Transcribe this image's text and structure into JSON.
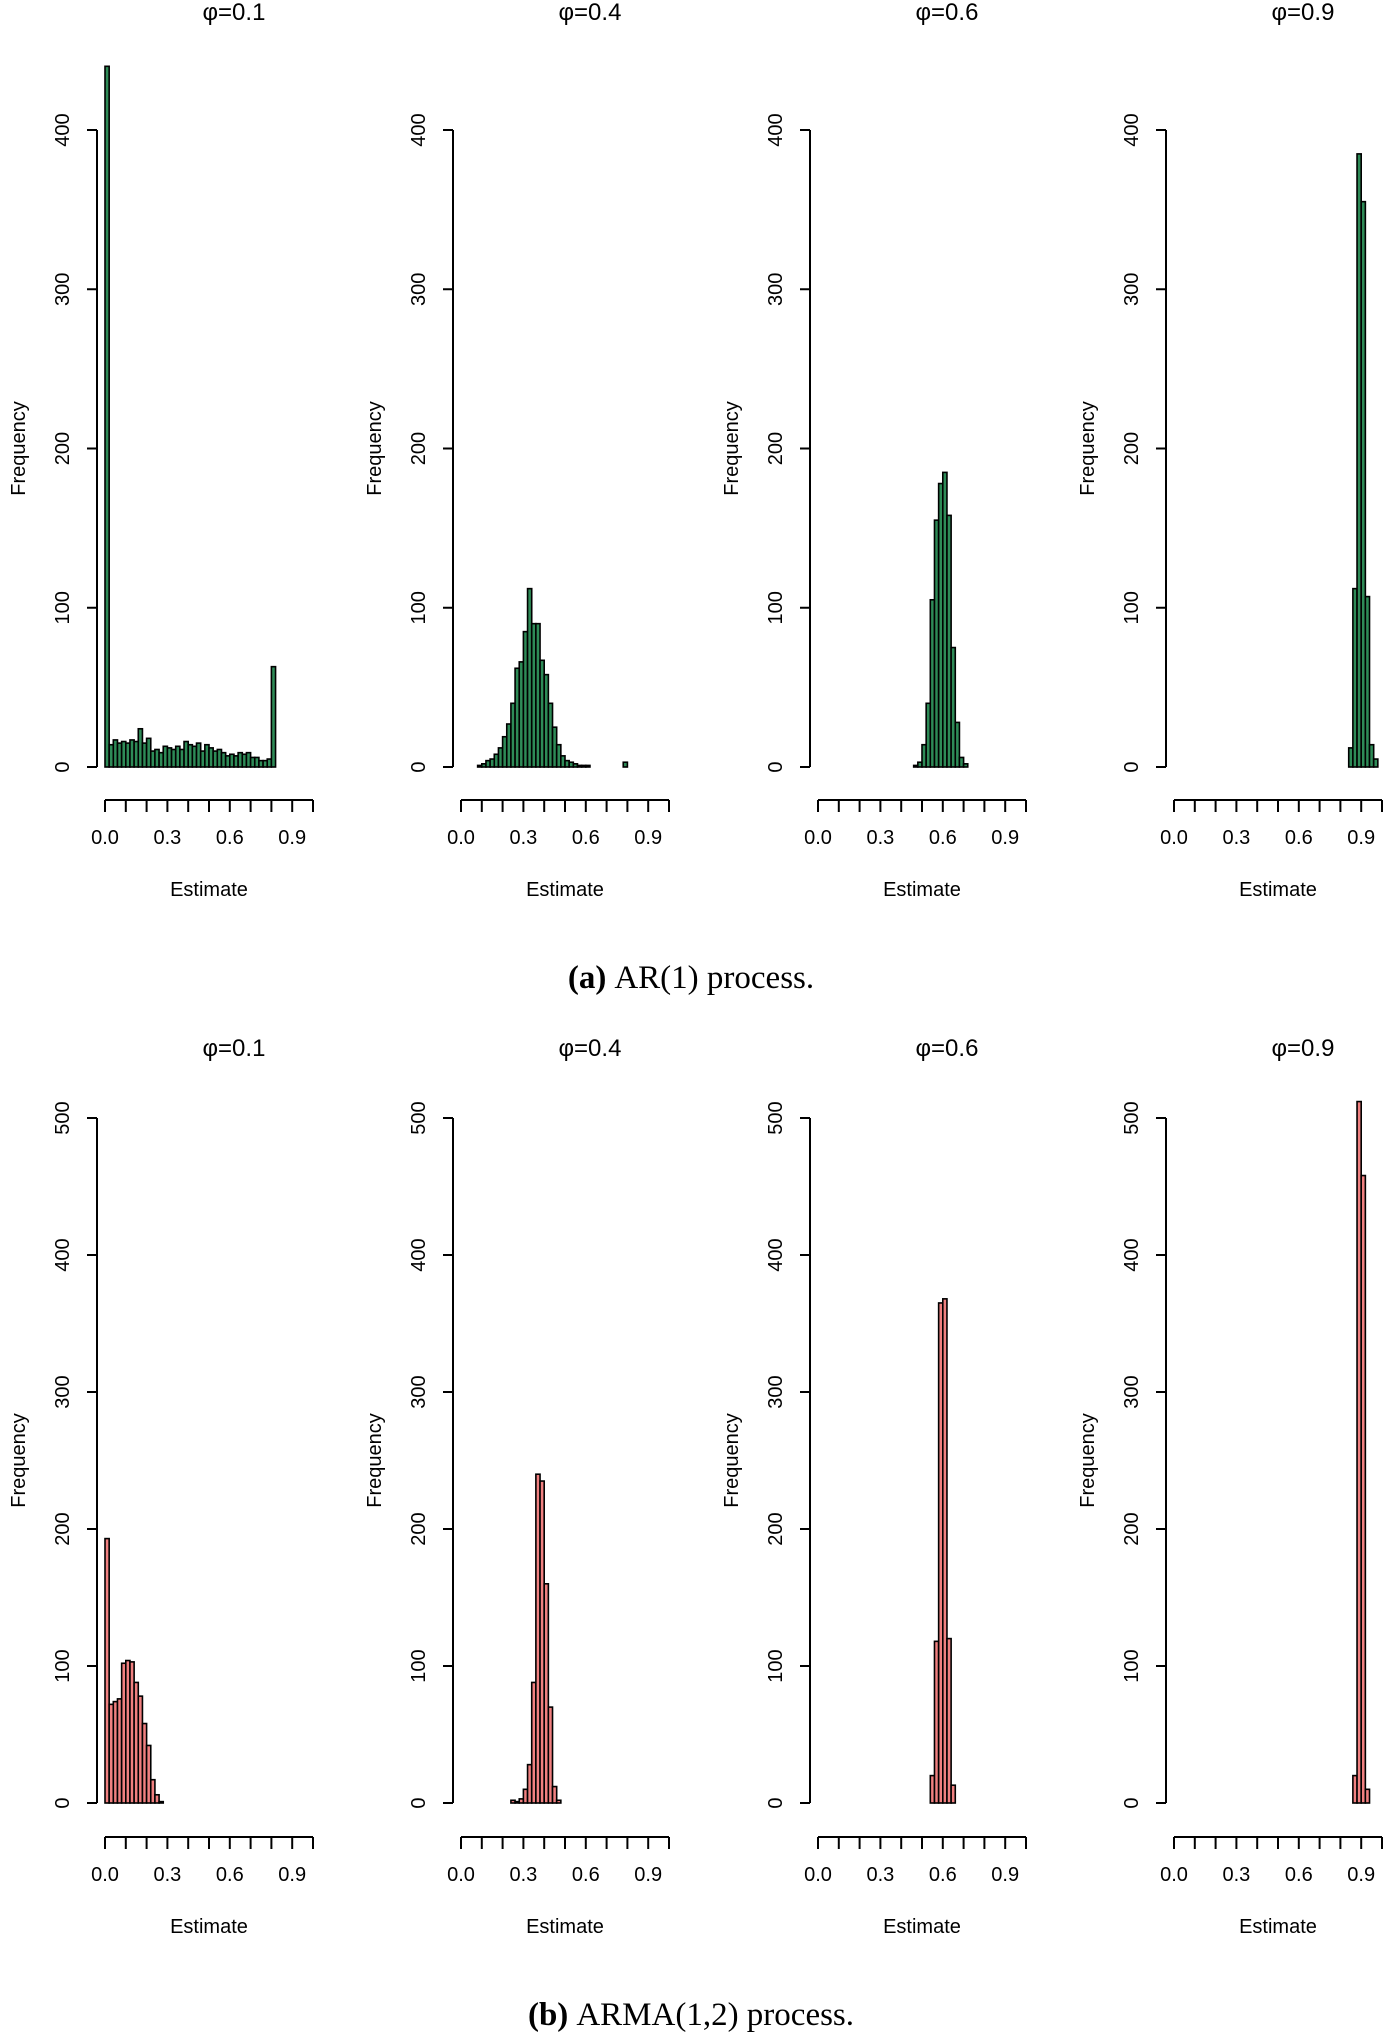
{
  "chart_data": [
    {
      "type": "bar",
      "panel": "a",
      "title": "φ=0.1",
      "xlabel": "Estimate",
      "ylabel": "Frequency",
      "color": "#2e8b57",
      "xlim": [
        0.0,
        1.0
      ],
      "ylim": [
        0,
        440
      ],
      "x_ticks": [
        0.0,
        0.1,
        0.2,
        0.3,
        0.4,
        0.5,
        0.6,
        0.7,
        0.8,
        0.9,
        1.0
      ],
      "x_tick_labels": [
        "0.0",
        "0.3",
        "0.6",
        "0.9"
      ],
      "y_ticks": [
        0,
        100,
        200,
        300,
        400
      ],
      "bin_start": 0.0,
      "bin_width": 0.02,
      "values": [
        440,
        14,
        17,
        15,
        16,
        15,
        17,
        16,
        24,
        15,
        18,
        10,
        11,
        9,
        13,
        12,
        11,
        13,
        11,
        16,
        14,
        13,
        15,
        10,
        14,
        12,
        10,
        11,
        9,
        7,
        8,
        7,
        9,
        8,
        9,
        6,
        6,
        4,
        4,
        5,
        63
      ]
    },
    {
      "type": "bar",
      "panel": "a",
      "title": "φ=0.4",
      "xlabel": "Estimate",
      "ylabel": "Frequency",
      "color": "#2e8b57",
      "xlim": [
        0.0,
        1.0
      ],
      "ylim": [
        0,
        400
      ],
      "x_ticks": [
        0.0,
        0.1,
        0.2,
        0.3,
        0.4,
        0.5,
        0.6,
        0.7,
        0.8,
        0.9,
        1.0
      ],
      "x_tick_labels": [
        "0.0",
        "0.3",
        "0.6",
        "0.9"
      ],
      "y_ticks": [
        0,
        100,
        200,
        300,
        400
      ],
      "bin_start": 0.0,
      "bin_width": 0.02,
      "values": [
        0,
        0,
        0,
        0,
        1,
        2,
        4,
        5,
        8,
        12,
        19,
        27,
        40,
        62,
        66,
        85,
        112,
        90,
        90,
        67,
        58,
        40,
        25,
        14,
        7,
        4,
        3,
        2,
        1,
        1,
        1,
        0,
        0,
        0,
        0,
        0,
        0,
        0,
        0,
        3
      ]
    },
    {
      "type": "bar",
      "panel": "a",
      "title": "φ=0.6",
      "xlabel": "Estimate",
      "ylabel": "Frequency",
      "color": "#2e8b57",
      "xlim": [
        0.0,
        1.0
      ],
      "ylim": [
        0,
        400
      ],
      "x_ticks": [
        0.0,
        0.1,
        0.2,
        0.3,
        0.4,
        0.5,
        0.6,
        0.7,
        0.8,
        0.9,
        1.0
      ],
      "x_tick_labels": [
        "0.0",
        "0.3",
        "0.6",
        "0.9"
      ],
      "y_ticks": [
        0,
        100,
        200,
        300,
        400
      ],
      "bin_start": 0.46,
      "bin_width": 0.02,
      "values": [
        1,
        3,
        14,
        40,
        105,
        155,
        178,
        185,
        158,
        75,
        28,
        6,
        2
      ]
    },
    {
      "type": "bar",
      "panel": "a",
      "title": "φ=0.9",
      "xlabel": "Estimate",
      "ylabel": "Frequency",
      "color": "#2e8b57",
      "xlim": [
        0.0,
        1.0
      ],
      "ylim": [
        0,
        400
      ],
      "x_ticks": [
        0.0,
        0.1,
        0.2,
        0.3,
        0.4,
        0.5,
        0.6,
        0.7,
        0.8,
        0.9,
        1.0
      ],
      "x_tick_labels": [
        "0.0",
        "0.3",
        "0.6",
        "0.9"
      ],
      "y_ticks": [
        0,
        100,
        200,
        300,
        400
      ],
      "bin_start": 0.84,
      "bin_width": 0.02,
      "values": [
        12,
        112,
        385,
        355,
        107,
        14,
        5
      ]
    },
    {
      "type": "bar",
      "panel": "b",
      "title": "φ=0.1",
      "xlabel": "Estimate",
      "ylabel": "Frequency",
      "color": "#f08080",
      "xlim": [
        0.0,
        1.0
      ],
      "ylim": [
        0,
        500
      ],
      "x_ticks": [
        0.0,
        0.1,
        0.2,
        0.3,
        0.4,
        0.5,
        0.6,
        0.7,
        0.8,
        0.9,
        1.0
      ],
      "x_tick_labels": [
        "0.0",
        "0.3",
        "0.6",
        "0.9"
      ],
      "y_ticks": [
        0,
        100,
        200,
        300,
        400,
        500
      ],
      "bin_start": 0.0,
      "bin_width": 0.02,
      "values": [
        193,
        72,
        74,
        76,
        102,
        104,
        103,
        88,
        78,
        58,
        42,
        17,
        6,
        1
      ]
    },
    {
      "type": "bar",
      "panel": "b",
      "title": "φ=0.4",
      "xlabel": "Estimate",
      "ylabel": "Frequency",
      "color": "#f08080",
      "xlim": [
        0.0,
        1.0
      ],
      "ylim": [
        0,
        500
      ],
      "x_ticks": [
        0.0,
        0.1,
        0.2,
        0.3,
        0.4,
        0.5,
        0.6,
        0.7,
        0.8,
        0.9,
        1.0
      ],
      "x_tick_labels": [
        "0.0",
        "0.3",
        "0.6",
        "0.9"
      ],
      "y_ticks": [
        0,
        100,
        200,
        300,
        400,
        500
      ],
      "bin_start": 0.24,
      "bin_width": 0.02,
      "values": [
        2,
        1,
        3,
        10,
        28,
        88,
        240,
        235,
        160,
        70,
        12,
        2
      ]
    },
    {
      "type": "bar",
      "panel": "b",
      "title": "φ=0.6",
      "xlabel": "Estimate",
      "ylabel": "Frequency",
      "color": "#f08080",
      "xlim": [
        0.0,
        1.0
      ],
      "ylim": [
        0,
        500
      ],
      "x_ticks": [
        0.0,
        0.1,
        0.2,
        0.3,
        0.4,
        0.5,
        0.6,
        0.7,
        0.8,
        0.9,
        1.0
      ],
      "x_tick_labels": [
        "0.0",
        "0.3",
        "0.6",
        "0.9"
      ],
      "y_ticks": [
        0,
        100,
        200,
        300,
        400,
        500
      ],
      "bin_start": 0.54,
      "bin_width": 0.02,
      "values": [
        20,
        118,
        365,
        368,
        120,
        13
      ]
    },
    {
      "type": "bar",
      "panel": "b",
      "title": "φ=0.9",
      "xlabel": "Estimate",
      "ylabel": "Frequency",
      "color": "#f08080",
      "xlim": [
        0.0,
        1.0
      ],
      "ylim": [
        0,
        500
      ],
      "x_ticks": [
        0.0,
        0.1,
        0.2,
        0.3,
        0.4,
        0.5,
        0.6,
        0.7,
        0.8,
        0.9,
        1.0
      ],
      "x_tick_labels": [
        "0.0",
        "0.3",
        "0.6",
        "0.9"
      ],
      "y_ticks": [
        0,
        100,
        200,
        300,
        400,
        500
      ],
      "bin_start": 0.86,
      "bin_width": 0.02,
      "values": [
        20,
        512,
        458,
        10
      ]
    }
  ],
  "captions": {
    "a": {
      "label": "(a)",
      "text": "AR(1) process."
    },
    "b": {
      "label": "(b)",
      "text": "ARMA(1,2) process."
    }
  }
}
